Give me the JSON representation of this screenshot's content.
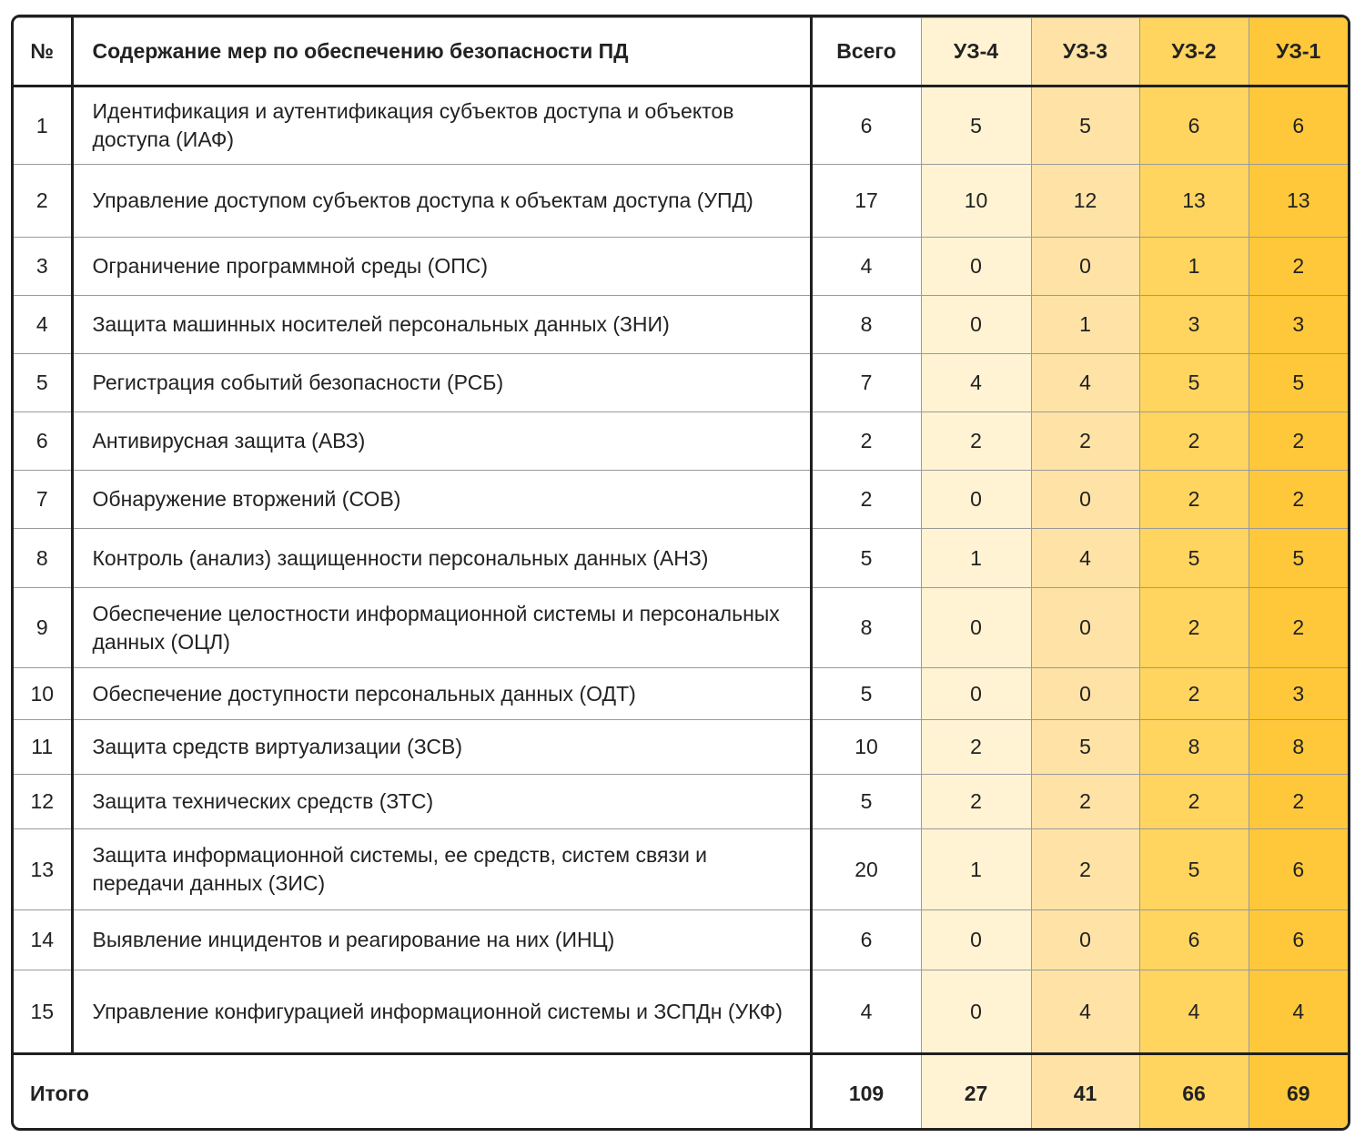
{
  "header": {
    "number": "№",
    "content": "Содержание мер по обеспечению безопасности ПД",
    "total": "Всего",
    "levels": [
      "УЗ-4",
      "УЗ-3",
      "УЗ-2",
      "УЗ-1"
    ]
  },
  "rows": [
    {
      "number": 1,
      "content": "Идентификация и аутентификация субъектов доступа и объектов доступа (ИАФ)",
      "total": 6,
      "levels": [
        5,
        5,
        6,
        6
      ]
    },
    {
      "number": 2,
      "content": "Управление доступом субъектов доступа к объектам доступа (УПД)",
      "total": 17,
      "levels": [
        10,
        12,
        13,
        13
      ]
    },
    {
      "number": 3,
      "content": "Ограничение программной среды (ОПС)",
      "total": 4,
      "levels": [
        0,
        0,
        1,
        2
      ]
    },
    {
      "number": 4,
      "content": "Защита машинных носителей персональных данных (ЗНИ)",
      "total": 8,
      "levels": [
        0,
        1,
        3,
        3
      ]
    },
    {
      "number": 5,
      "content": "Регистрация событий безопасности (РСБ)",
      "total": 7,
      "levels": [
        4,
        4,
        5,
        5
      ]
    },
    {
      "number": 6,
      "content": "Антивирусная защита (АВЗ)",
      "total": 2,
      "levels": [
        2,
        2,
        2,
        2
      ]
    },
    {
      "number": 7,
      "content": "Обнаружение вторжений (СОВ)",
      "total": 2,
      "levels": [
        0,
        0,
        2,
        2
      ]
    },
    {
      "number": 8,
      "content": "Контроль (анализ) защищенности персональных данных (АНЗ)",
      "total": 5,
      "levels": [
        1,
        4,
        5,
        5
      ]
    },
    {
      "number": 9,
      "content": "Обеспечение целостности информационной системы и персональных данных (ОЦЛ)",
      "total": 8,
      "levels": [
        0,
        0,
        2,
        2
      ]
    },
    {
      "number": 10,
      "content": "Обеспечение доступности персональных данных (ОДТ)",
      "total": 5,
      "levels": [
        0,
        0,
        2,
        3
      ]
    },
    {
      "number": 11,
      "content": "Защита средств виртуализации (ЗСВ)",
      "total": 10,
      "levels": [
        2,
        5,
        8,
        8
      ]
    },
    {
      "number": 12,
      "content": "Защита технических средств (ЗТС)",
      "total": 5,
      "levels": [
        2,
        2,
        2,
        2
      ]
    },
    {
      "number": 13,
      "content": "Защита информационной системы, ее средств, систем связи и передачи данных (ЗИС)",
      "total": 20,
      "levels": [
        1,
        2,
        5,
        6
      ]
    },
    {
      "number": 14,
      "content": "Выявление инцидентов и реагирование на них (ИНЦ)",
      "total": 6,
      "levels": [
        0,
        0,
        6,
        6
      ]
    },
    {
      "number": 15,
      "content": "Управление конфигурацией информационной системы и ЗСПДн (УКФ)",
      "total": 4,
      "levels": [
        0,
        4,
        4,
        4
      ]
    }
  ],
  "summary": {
    "label": "Итого",
    "total": 109,
    "levels": [
      27,
      41,
      66,
      69
    ]
  }
}
